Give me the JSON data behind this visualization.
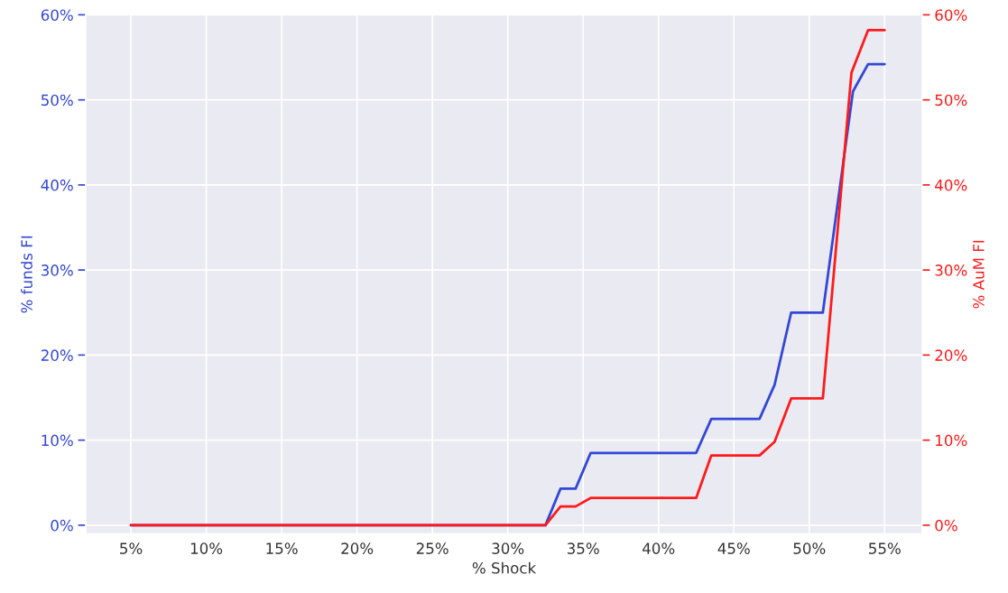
{
  "chart_data": {
    "type": "line",
    "xlabel": "% Shock",
    "ylabel": "% funds FI",
    "y2label": "% AuM FI",
    "xlim": [
      2,
      57.5
    ],
    "xticks": [
      {
        "value": 5,
        "label": "5%"
      },
      {
        "value": 10,
        "label": "10%"
      },
      {
        "value": 15,
        "label": "15%"
      },
      {
        "value": 20,
        "label": "20%"
      },
      {
        "value": 25,
        "label": "25%"
      },
      {
        "value": 30,
        "label": "30%"
      },
      {
        "value": 35,
        "label": "35%"
      },
      {
        "value": 40,
        "label": "40%"
      },
      {
        "value": 45,
        "label": "45%"
      },
      {
        "value": 50,
        "label": "50%"
      },
      {
        "value": 55,
        "label": "55%"
      }
    ],
    "ylim": [
      -1,
      60
    ],
    "yticks": [
      {
        "value": 0,
        "label": "0%"
      },
      {
        "value": 10,
        "label": "10%"
      },
      {
        "value": 20,
        "label": "20%"
      },
      {
        "value": 30,
        "label": "30%"
      },
      {
        "value": 40,
        "label": "40%"
      },
      {
        "value": 50,
        "label": "50%"
      },
      {
        "value": 60,
        "label": "60%"
      }
    ],
    "y2lim": [
      -1,
      60
    ],
    "y2ticks": [
      {
        "value": 0,
        "label": "0%"
      },
      {
        "value": 10,
        "label": "10%"
      },
      {
        "value": 20,
        "label": "20%"
      },
      {
        "value": 30,
        "label": "30%"
      },
      {
        "value": 40,
        "label": "40%"
      },
      {
        "value": 50,
        "label": "50%"
      },
      {
        "value": 60,
        "label": "60%"
      }
    ],
    "grid": true,
    "series": [
      {
        "color": "#3347d6",
        "x": [
          5,
          32.5,
          33.5,
          34.5,
          35.5,
          42.5,
          43.5,
          46.7,
          47.7,
          48.8,
          50.9,
          52.9,
          53.9,
          55
        ],
        "values": [
          0,
          0,
          4.3,
          4.3,
          8.5,
          8.5,
          12.5,
          12.5,
          16.5,
          25,
          25,
          51,
          54.2,
          54.2
        ]
      },
      {
        "color": "#ff1a1a",
        "axis": "y2",
        "x": [
          5,
          32.5,
          33.5,
          34.5,
          35.5,
          42.5,
          43.5,
          46.7,
          47.7,
          48.8,
          50.9,
          52.8,
          53.9,
          55
        ],
        "values": [
          0,
          0,
          2.2,
          2.2,
          3.2,
          3.2,
          8.2,
          8.2,
          9.8,
          14.9,
          14.9,
          53.2,
          58.2,
          58.2
        ]
      }
    ]
  }
}
